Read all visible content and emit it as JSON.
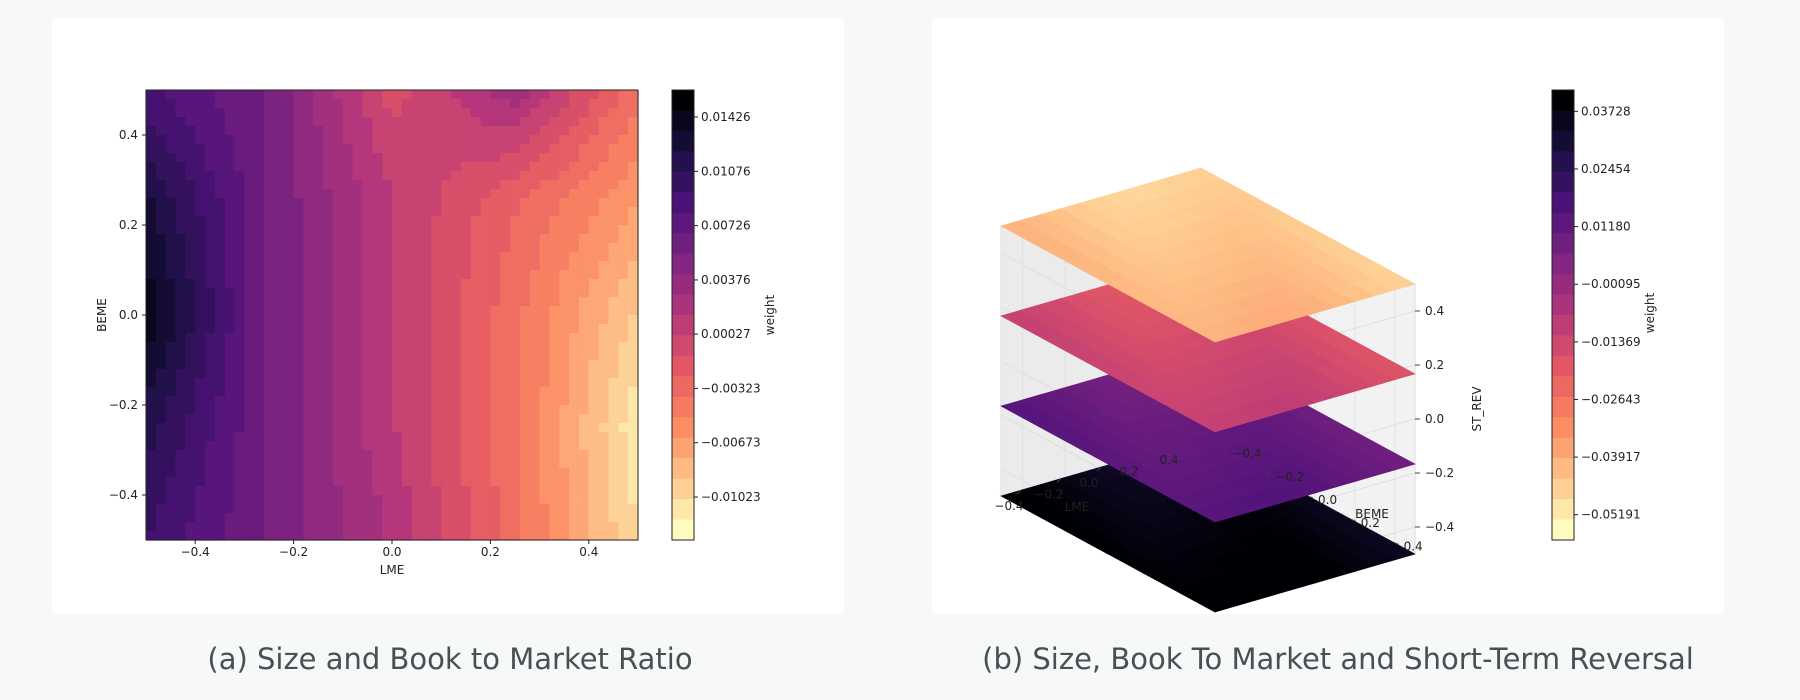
{
  "captions": {
    "a": "(a) Size and Book to Market Ratio",
    "b": "(b) Size, Book To Market and Short-Term Reversal"
  },
  "colors": {
    "panel_background": "#ffffff",
    "page_background": "#f7f8f8",
    "colormap": [
      "#000004",
      "#1c1044",
      "#4f127b",
      "#812581",
      "#b5367a",
      "#e55964",
      "#fb8761",
      "#fec287",
      "#fcfdbf"
    ]
  },
  "chart_data": [
    {
      "type": "heatmap",
      "subtype": "filled-contour",
      "xlabel": "LME",
      "ylabel": "BEME",
      "xlim": [
        -0.5,
        0.5
      ],
      "ylim": [
        -0.5,
        0.5
      ],
      "xticks": [
        -0.4,
        -0.2,
        0.0,
        0.2,
        0.4
      ],
      "yticks": [
        -0.4,
        -0.2,
        0.0,
        0.2,
        0.4
      ],
      "xtick_labels": [
        "−0.4",
        "−0.2",
        "0.0",
        "0.2",
        "0.4"
      ],
      "ytick_labels": [
        "−0.4",
        "−0.2",
        "0.0",
        "0.2",
        "0.4"
      ],
      "colorbar": {
        "label": "weight",
        "range": [
          -0.013,
          0.016
        ],
        "ticks": [
          0.01426,
          0.01076,
          0.00726,
          0.00376,
          0.00027,
          -0.00323,
          -0.00673,
          -0.01023
        ],
        "tick_labels": [
          "0.01426",
          "0.01076",
          "0.00726",
          "0.00376",
          "0.00027",
          "−0.00323",
          "−0.00673",
          "−0.01023"
        ]
      },
      "colormap": "magma",
      "description": "weight decreases from left (LME -0.5, ~0.016) to right (LME 0.5, ~-0.013); lightest at lower right",
      "weight_grid": {
        "x": [
          -0.5,
          -0.25,
          0.0,
          0.25,
          0.5
        ],
        "y": [
          -0.5,
          -0.25,
          0.0,
          0.25,
          0.5
        ],
        "values": [
          [
            0.01,
            0.006,
            0.002,
            -0.004,
            -0.011
          ],
          [
            0.012,
            0.006,
            0.001,
            -0.004,
            -0.012
          ],
          [
            0.015,
            0.006,
            0.001,
            -0.004,
            -0.01
          ],
          [
            0.013,
            0.006,
            0.001,
            -0.003,
            -0.007
          ],
          [
            0.009,
            0.006,
            -0.001,
            0.003,
            -0.004
          ]
        ]
      }
    },
    {
      "type": "surface3d",
      "subtype": "stacked-contour-planes",
      "xlabel": "LME",
      "ylabel": "BEME",
      "zlabel": "ST_REV",
      "xlim": [
        -0.5,
        0.5
      ],
      "ylim": [
        -0.5,
        0.5
      ],
      "zlim": [
        -0.5,
        0.5
      ],
      "xtick_labels": [
        "−0.4",
        "−0.2",
        "0.0",
        "0.2",
        "0.4"
      ],
      "ytick_labels": [
        "−0.4",
        "−0.2",
        "0.0",
        "0.2",
        "0.4"
      ],
      "ztick_labels": [
        "0.4",
        "0.2",
        "0.0",
        "−0.2",
        "−0.4"
      ],
      "xticks": [
        -0.4,
        -0.2,
        0.0,
        0.2,
        0.4
      ],
      "yticks": [
        -0.4,
        -0.2,
        0.0,
        0.2,
        0.4
      ],
      "zticks": [
        0.4,
        0.2,
        0.0,
        -0.2,
        -0.4
      ],
      "slice_levels": [
        -0.5,
        -0.167,
        0.167,
        0.5
      ],
      "slice_weights": [
        0.04,
        0.012,
        -0.015,
        -0.045
      ],
      "colorbar": {
        "label": "weight",
        "range": [
          -0.0575,
          0.042
        ],
        "ticks": [
          0.03728,
          0.02454,
          0.0118,
          -0.00095,
          -0.01369,
          -0.02643,
          -0.03917,
          -0.05191
        ],
        "tick_labels": [
          "0.03728",
          "0.02454",
          "0.01180",
          "−0.00095",
          "−0.01369",
          "−0.02643",
          "−0.03917",
          "−0.05191"
        ]
      },
      "colormap": "magma"
    }
  ]
}
